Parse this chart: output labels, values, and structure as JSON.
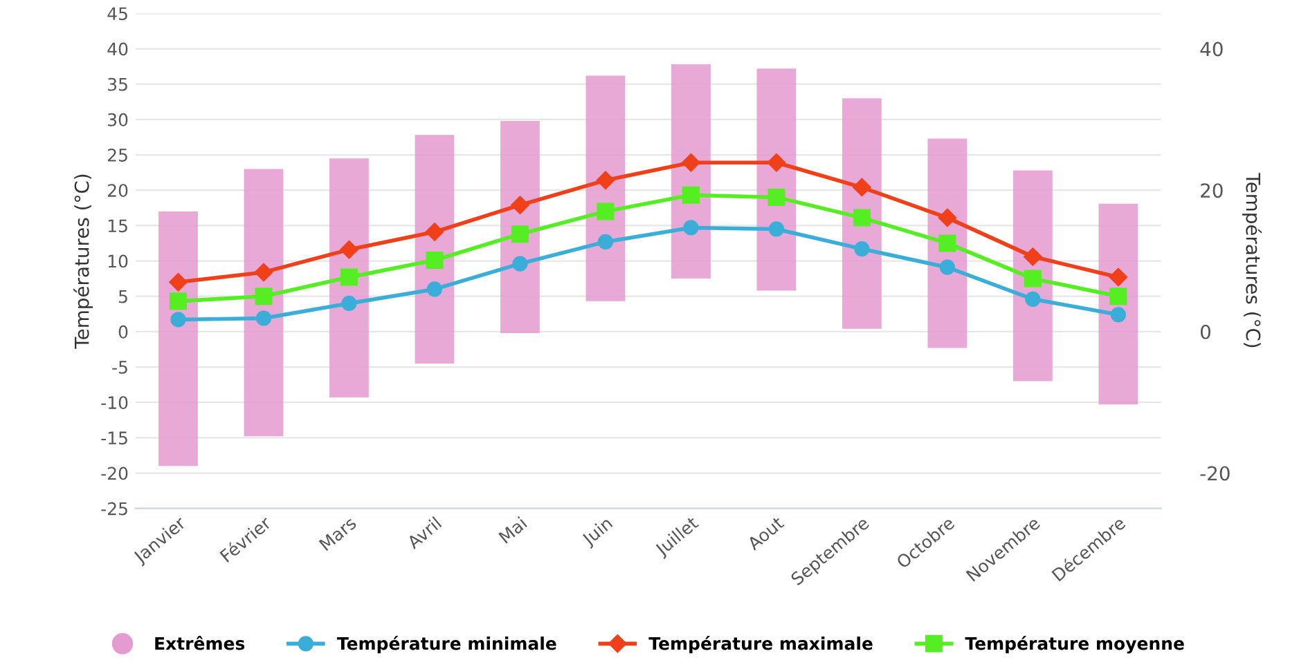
{
  "chart_data": {
    "type": "bar",
    "ylabel": "Températures (°C)",
    "y2label": "Températures (°C)",
    "categories": [
      "Janvier",
      "Février",
      "Mars",
      "Avril",
      "Mai",
      "Juin",
      "Juillet",
      "Aout",
      "Septembre",
      "Octobre",
      "Novembre",
      "Décembre"
    ],
    "ylim": [
      -25,
      45
    ],
    "yticks": [
      -25,
      -20,
      -15,
      -10,
      -5,
      0,
      5,
      10,
      15,
      20,
      25,
      30,
      35,
      40,
      45
    ],
    "y2lim": [
      -25,
      45
    ],
    "y2ticks": [
      -20,
      0,
      20,
      40
    ],
    "grid": "y",
    "legend": "bottom",
    "series": [
      {
        "name": "Extrêmes",
        "color": "#e59ad0",
        "base": [
          -19,
          -14.8,
          -9.3,
          -4.5,
          -0.2,
          4.3,
          7.5,
          5.8,
          0.4,
          -2.3,
          -7,
          -10.3
        ],
        "values": [
          36,
          37.8,
          33.8,
          32.3,
          30,
          31.9,
          30.3,
          31.4,
          32.6,
          29.6,
          29.8,
          28.4
        ]
      },
      {
        "name": "Température minimale",
        "type": "line",
        "color": "#3aaed8",
        "marker": "circle",
        "values": [
          1.7,
          1.9,
          4.0,
          6.0,
          9.6,
          12.7,
          14.7,
          14.5,
          11.7,
          9.1,
          4.6,
          2.4
        ]
      },
      {
        "name": "Température maximale",
        "type": "line",
        "color": "#f0401a",
        "marker": "diamond",
        "values": [
          7.0,
          8.4,
          11.6,
          14.1,
          17.9,
          21.4,
          23.9,
          23.9,
          20.4,
          16.1,
          10.6,
          7.7
        ]
      },
      {
        "name": "Température moyenne",
        "type": "line",
        "color": "#55ee22",
        "marker": "square",
        "values": [
          4.3,
          5.0,
          7.7,
          10.1,
          13.8,
          17.0,
          19.3,
          19.0,
          16.1,
          12.5,
          7.5,
          5.0
        ]
      }
    ]
  }
}
